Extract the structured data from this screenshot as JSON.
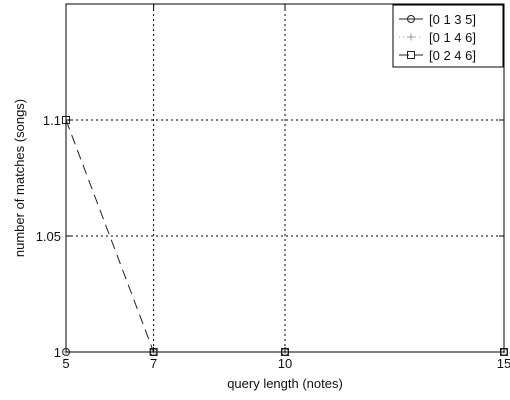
{
  "chart_data": {
    "type": "line",
    "title": "",
    "xlabel": "query length (notes)",
    "ylabel": "number of matches (songs)",
    "x": [
      5,
      7,
      10,
      15
    ],
    "x_tick_labels": [
      "5",
      "7",
      "10",
      "15"
    ],
    "y_ticks": [
      1,
      1.05,
      1.1
    ],
    "y_tick_labels": [
      "1",
      "1.05",
      "1.1"
    ],
    "xlim": [
      5,
      15
    ],
    "ylim": [
      1,
      1.15
    ],
    "grid": true,
    "legend_position": "top-right",
    "series": [
      {
        "name": "[0 1 3 5]",
        "marker": "circle",
        "line": "solid",
        "values": [
          1,
          1,
          1,
          1
        ]
      },
      {
        "name": "[0 1 4 6]",
        "marker": "plus",
        "line": "dotted",
        "values": [
          1,
          1,
          1,
          1
        ]
      },
      {
        "name": "[0 2 4 6]",
        "marker": "square",
        "line": "dashed",
        "values": [
          1.1,
          1,
          1,
          1
        ]
      }
    ]
  }
}
